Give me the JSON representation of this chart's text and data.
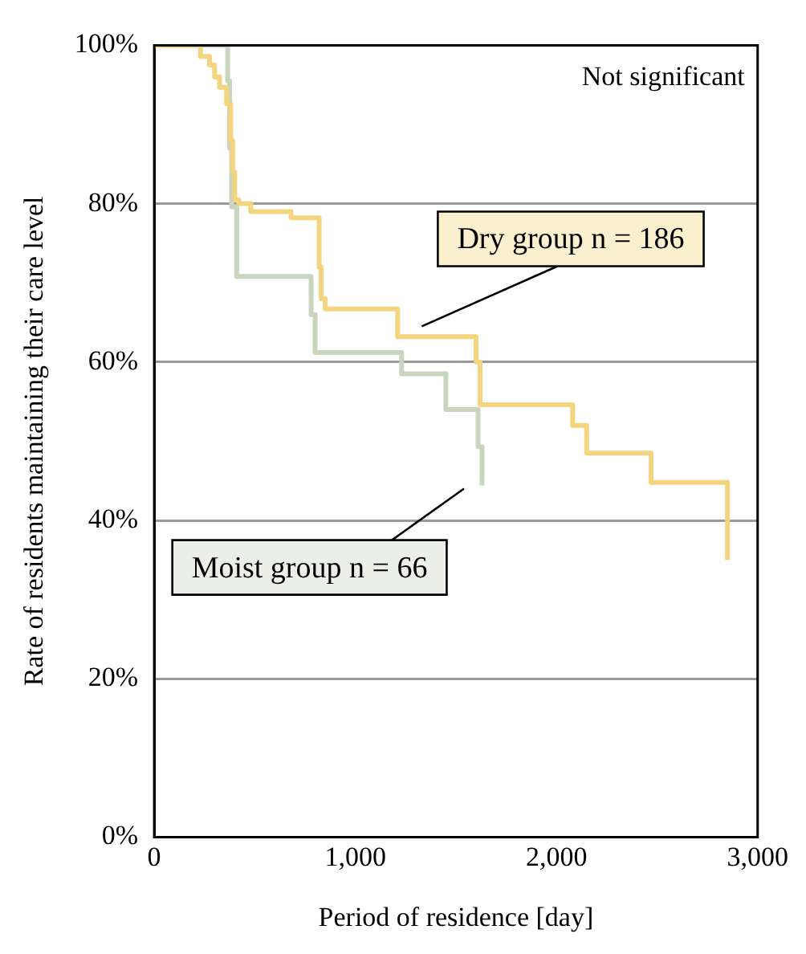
{
  "chart_data": {
    "type": "step",
    "xlabel": "Period of residence [day]",
    "ylabel": "Rate of residents maintaining their care level",
    "xlim": [
      0,
      3000
    ],
    "xticks": [
      0,
      {
        "value": 1000,
        "label": "1,000"
      },
      {
        "value": 2000,
        "label": "2,000"
      },
      {
        "value": 3000,
        "label": "3,000"
      }
    ],
    "ylim": [
      0,
      100
    ],
    "yticks": [
      {
        "value": 0,
        "label": "0%"
      },
      {
        "value": 20,
        "label": "20%"
      },
      {
        "value": 40,
        "label": "40%"
      },
      {
        "value": 60,
        "label": "60%"
      },
      {
        "value": 80,
        "label": "80%"
      },
      {
        "value": 100,
        "label": "100%"
      }
    ],
    "grid": "y",
    "legend": false,
    "marker": "none",
    "annotations": [
      "Not significant"
    ],
    "series": [
      {
        "name": "Dry group n = 186",
        "color": "#f2d57e",
        "x": [
          0,
          230,
          275,
          300,
          325,
          360,
          380,
          390,
          400,
          420,
          480,
          680,
          820,
          830,
          850,
          1210,
          1600,
          1620,
          2080,
          2150,
          2470,
          2850
        ],
        "values": [
          100,
          98.6,
          97.5,
          96,
          94.7,
          92.6,
          88,
          84,
          80.5,
          80,
          79,
          78.2,
          72,
          68,
          66.7,
          63.2,
          60,
          54.6,
          52,
          48.5,
          44.8,
          35
        ]
      },
      {
        "name": "Moist group n = 66",
        "color": "#c8d5bf",
        "x": [
          0,
          350,
          365,
          375,
          385,
          410,
          780,
          800,
          1230,
          1450,
          1610,
          1630
        ],
        "values": [
          100,
          100,
          95.5,
          87,
          79.6,
          70.8,
          66,
          61.2,
          58.5,
          54,
          49.3,
          44.4
        ]
      }
    ]
  }
}
